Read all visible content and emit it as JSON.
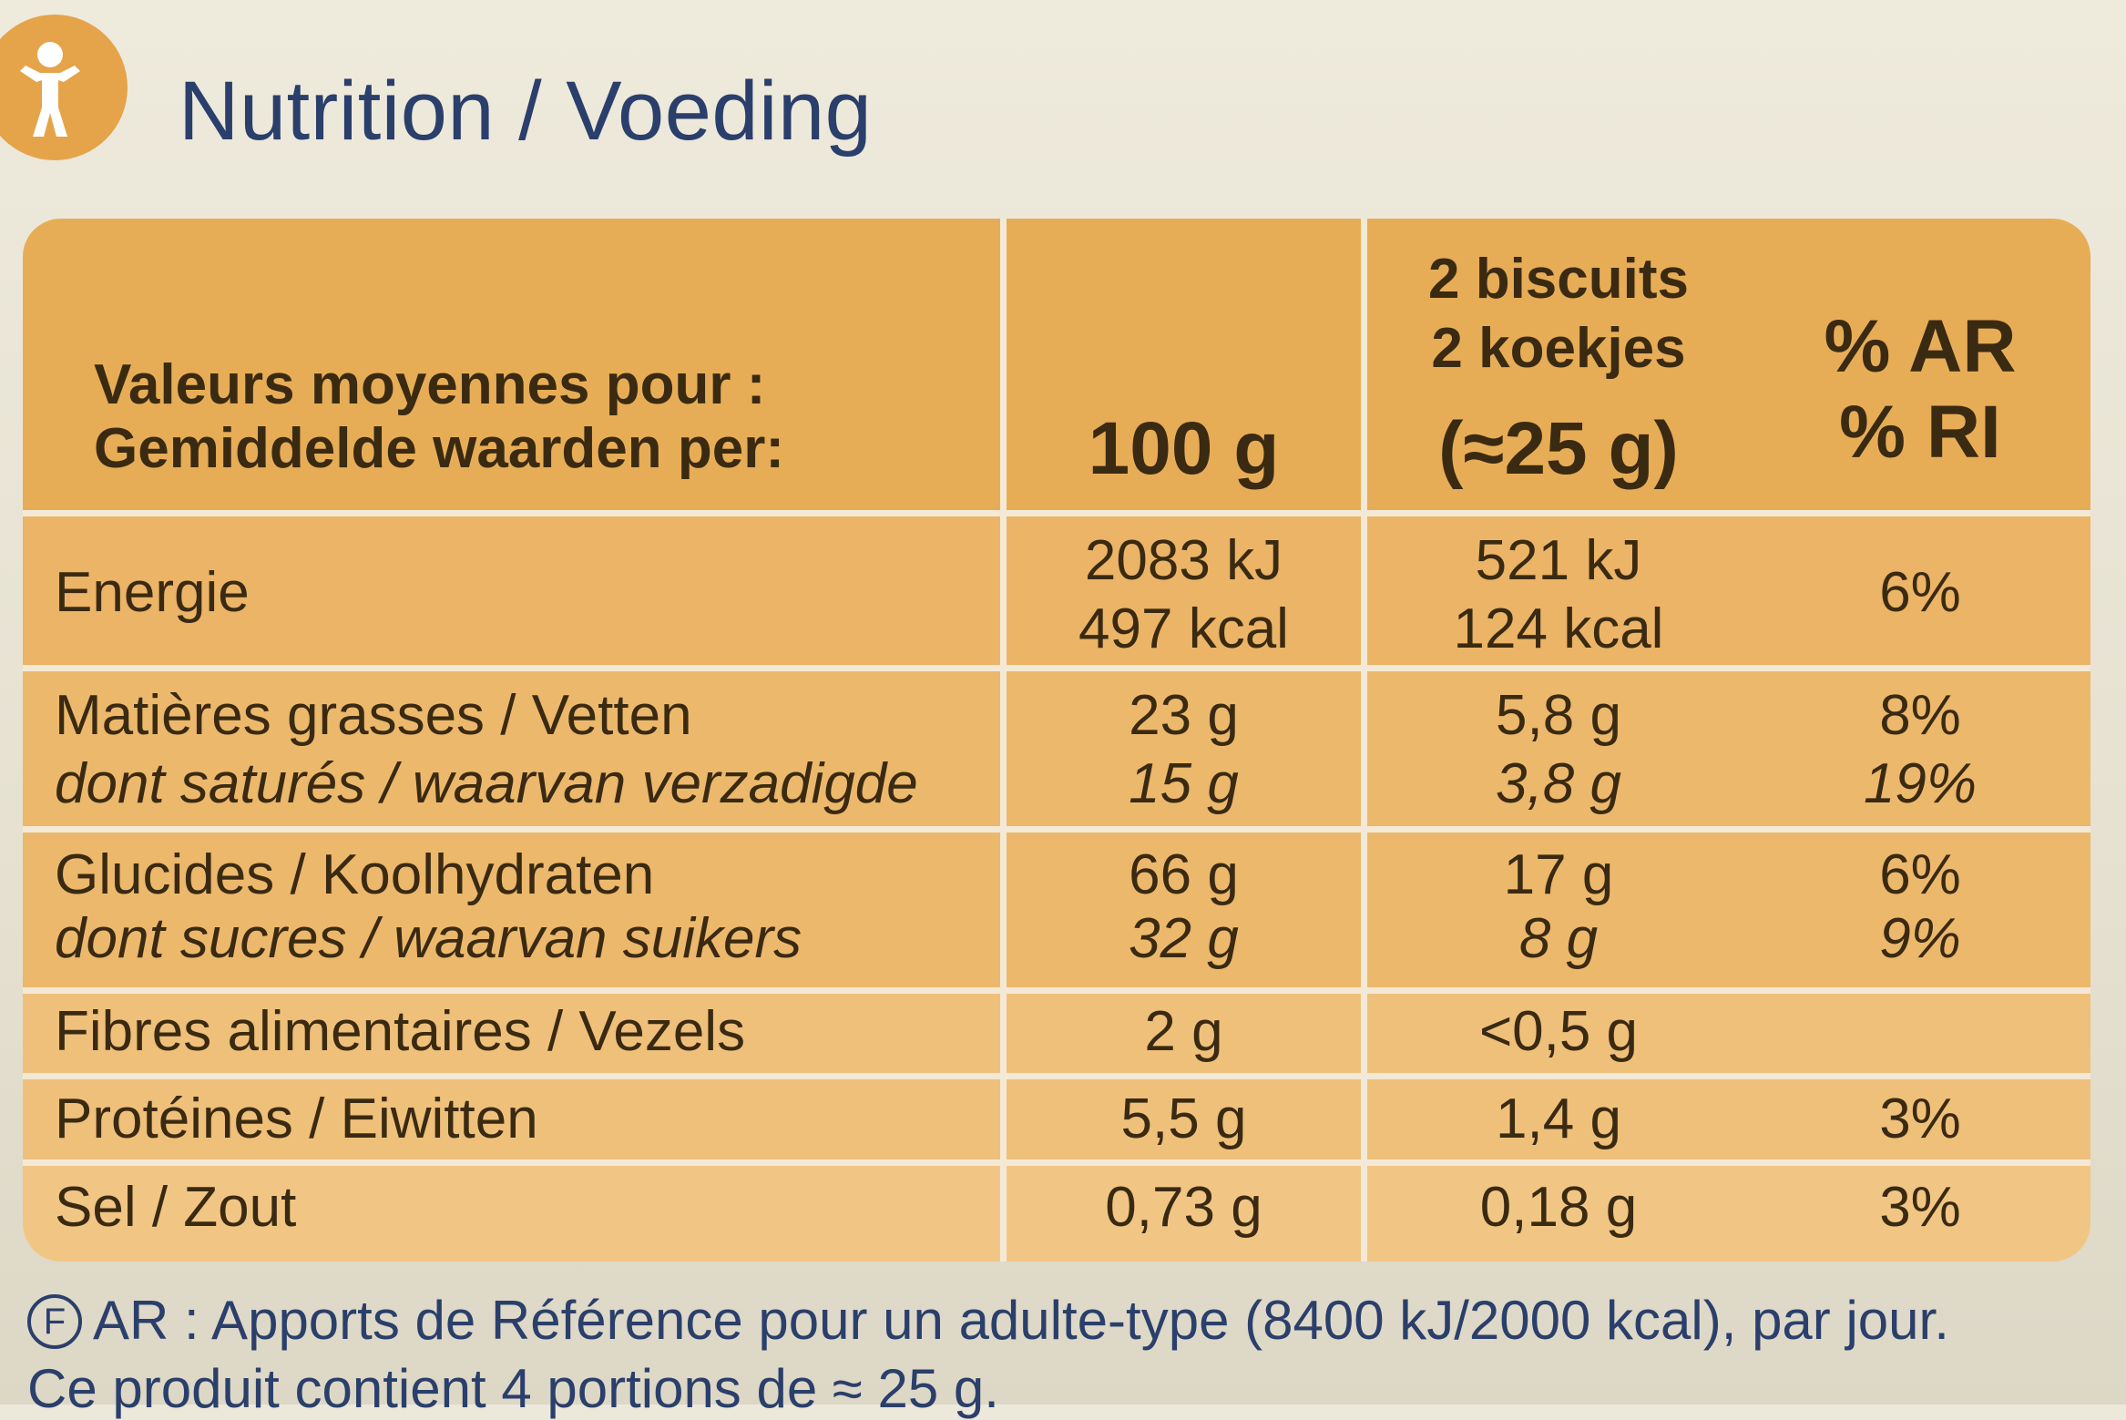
{
  "title": "Nutrition / Voeding",
  "header": {
    "row_label_fr": "Valeurs moyennes pour :",
    "row_label_nl": "Gemiddelde waarden per:",
    "col_100g": "100 g",
    "col_portion_fr": "2 biscuits",
    "col_portion_nl": "2 koekjes",
    "col_portion_weight": "(≈25 g)",
    "col_ri_fr": "% AR",
    "col_ri_nl": "% RI"
  },
  "rows": {
    "energy": {
      "label": "Energie",
      "v100_kj": "2083 kJ",
      "v100_kcal": "497 kcal",
      "portion_kj": "521 kJ",
      "portion_kcal": "124 kcal",
      "ri": "6%"
    },
    "fat": {
      "label": "Matières grasses / Vetten",
      "v100": "23 g",
      "portion": "5,8 g",
      "ri": "8%"
    },
    "saturated": {
      "label": "dont saturés / waarvan verzadigde",
      "v100": "15 g",
      "portion": "3,8 g",
      "ri": "19%"
    },
    "carbs": {
      "label": "Glucides / Koolhydraten",
      "v100": "66 g",
      "portion": "17 g",
      "ri": "6%"
    },
    "sugars": {
      "label": "dont sucres / waarvan suikers",
      "v100": "32 g",
      "portion": "8 g",
      "ri": "9%"
    },
    "fibre": {
      "label": "Fibres alimentaires / Vezels",
      "v100": "2 g",
      "portion": "<0,5 g",
      "ri": ""
    },
    "protein": {
      "label": "Protéines / Eiwitten",
      "v100": "5,5 g",
      "portion": "1,4 g",
      "ri": "3%"
    },
    "salt": {
      "label": "Sel / Zout",
      "v100": "0,73 g",
      "portion": "0,18 g",
      "ri": "3%"
    }
  },
  "footer": {
    "flag": "F",
    "line1": "AR : Apports de Référence pour un adulte-type (8400 kJ/2000 kcal), par jour.",
    "line2": "Ce produit contient 4 portions de ≈ 25 g."
  },
  "icons": {
    "logo": "person-activity-icon"
  },
  "colors": {
    "title": "#2a3f6b",
    "header": "#e7ad56",
    "rows": "#ecb86c",
    "logo": "#e5a449"
  }
}
